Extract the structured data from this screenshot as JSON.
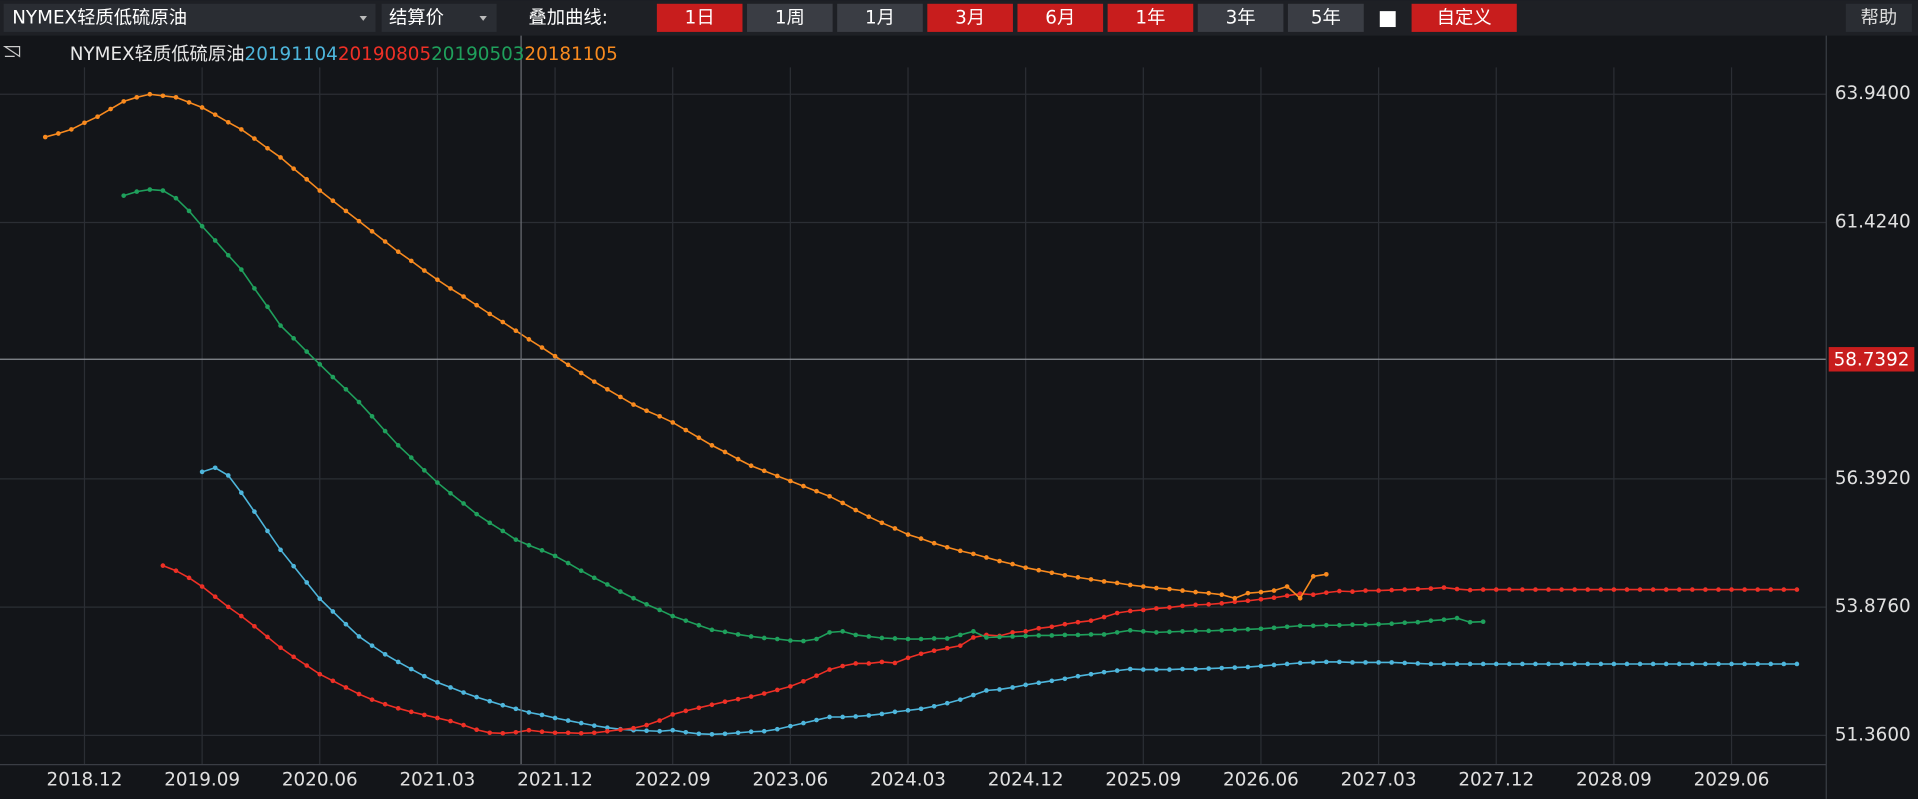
{
  "toolbar": {
    "instrument": "NYMEX轻质低硫原油",
    "price_type": "结算价",
    "overlay_label": "叠加曲线:",
    "ranges": [
      {
        "label": "1日",
        "active": true
      },
      {
        "label": "1周",
        "active": false
      },
      {
        "label": "1月",
        "active": false
      },
      {
        "label": "3月",
        "active": true
      },
      {
        "label": "6月",
        "active": true
      },
      {
        "label": "1年",
        "active": true
      },
      {
        "label": "3年",
        "active": false
      },
      {
        "label": "5年",
        "active": false
      }
    ],
    "custom": "自定义",
    "help": "帮助"
  },
  "chart_data": {
    "type": "line",
    "legend_title": "NYMEX轻质低硫原油",
    "categories": [
      null,
      null,
      null,
      "2018.12",
      null,
      null,
      null,
      null,
      null,
      null,
      null,
      null,
      "2019.09",
      null,
      null,
      null,
      null,
      null,
      null,
      null,
      null,
      "2020.06",
      null,
      null,
      null,
      null,
      null,
      null,
      null,
      null,
      "2021.03",
      null,
      null,
      null,
      null,
      null,
      null,
      null,
      null,
      "2021.12",
      null,
      null,
      null,
      null,
      null,
      null,
      null,
      null,
      "2022.09",
      null,
      null,
      null,
      null,
      null,
      null,
      null,
      null,
      "2023.06",
      null,
      null,
      null,
      null,
      null,
      null,
      null,
      null,
      "2024.03",
      null,
      null,
      null,
      null,
      null,
      null,
      null,
      null,
      "2024.12",
      null,
      null,
      null,
      null,
      null,
      null,
      null,
      null,
      "2025.09",
      null,
      null,
      null,
      null,
      null,
      null,
      null,
      null,
      "2026.06",
      null,
      null,
      null,
      null,
      null,
      null,
      null,
      null,
      "2027.03",
      null,
      null,
      null,
      null,
      null,
      null,
      null,
      null,
      "2027.12",
      null,
      null,
      null,
      null,
      null,
      null,
      null,
      null,
      "2028.09",
      null,
      null,
      null,
      null,
      null,
      null,
      null,
      null,
      "2029.06",
      null,
      null,
      null,
      null,
      null
    ],
    "series": [
      {
        "name": "20191104",
        "color": "#4eb6dc",
        "values": [
          null,
          null,
          null,
          null,
          null,
          null,
          null,
          null,
          null,
          null,
          null,
          null,
          56.53,
          56.61,
          56.46,
          56.12,
          55.75,
          55.37,
          55.0,
          54.68,
          54.36,
          54.04,
          53.79,
          53.54,
          53.3,
          53.12,
          52.95,
          52.8,
          52.66,
          52.52,
          52.4,
          52.3,
          52.2,
          52.11,
          52.03,
          51.95,
          51.88,
          51.81,
          51.76,
          51.7,
          51.65,
          51.6,
          51.55,
          51.51,
          51.48,
          51.46,
          51.45,
          51.44,
          51.46,
          51.42,
          51.39,
          51.38,
          51.39,
          51.41,
          51.43,
          51.44,
          51.48,
          51.54,
          51.6,
          51.66,
          51.72,
          51.72,
          51.73,
          51.75,
          51.78,
          51.82,
          51.85,
          51.88,
          51.93,
          51.99,
          52.06,
          52.15,
          52.24,
          52.26,
          52.3,
          52.35,
          52.39,
          52.43,
          52.47,
          52.52,
          52.56,
          52.6,
          52.63,
          52.66,
          52.65,
          52.65,
          52.65,
          52.66,
          52.66,
          52.67,
          52.68,
          52.69,
          52.7,
          52.72,
          52.74,
          52.76,
          52.78,
          52.79,
          52.8,
          52.8,
          52.79,
          52.79,
          52.79,
          52.79,
          52.78,
          52.77,
          52.76,
          52.76,
          52.76,
          52.76,
          52.76,
          52.76,
          52.76,
          52.76,
          52.76,
          52.76,
          52.76,
          52.76,
          52.76,
          52.76,
          52.76,
          52.76,
          52.76,
          52.76,
          52.76,
          52.76,
          52.76,
          52.76,
          52.76,
          52.76,
          52.76,
          52.76,
          52.76,
          52.76,
          52.76
        ]
      },
      {
        "name": "20190805",
        "color": "#ee3026",
        "values": [
          null,
          null,
          null,
          null,
          null,
          null,
          null,
          null,
          null,
          54.69,
          54.59,
          54.45,
          54.28,
          54.08,
          53.88,
          53.7,
          53.5,
          53.29,
          53.08,
          52.9,
          52.73,
          52.56,
          52.43,
          52.3,
          52.17,
          52.06,
          51.97,
          51.89,
          51.82,
          51.76,
          51.7,
          51.64,
          51.56,
          51.47,
          51.41,
          51.4,
          51.42,
          51.46,
          51.43,
          51.41,
          51.41,
          51.4,
          51.41,
          51.44,
          51.47,
          51.5,
          51.56,
          51.65,
          51.77,
          51.84,
          51.9,
          51.96,
          52.02,
          52.07,
          52.12,
          52.18,
          52.25,
          52.32,
          52.42,
          52.53,
          52.65,
          52.72,
          52.77,
          52.77,
          52.8,
          52.78,
          52.88,
          52.96,
          53.02,
          53.07,
          53.12,
          53.28,
          53.33,
          53.31,
          53.38,
          53.4,
          53.46,
          53.49,
          53.54,
          53.58,
          53.61,
          53.68,
          53.76,
          53.8,
          53.82,
          53.85,
          53.87,
          53.9,
          53.92,
          53.93,
          53.95,
          53.98,
          54.0,
          54.03,
          54.06,
          54.1,
          54.14,
          54.12,
          54.16,
          54.19,
          54.18,
          54.2,
          54.2,
          54.21,
          54.22,
          54.23,
          54.24,
          54.26,
          54.23,
          54.21,
          54.22,
          54.22,
          54.22,
          54.22,
          54.22,
          54.22,
          54.22,
          54.22,
          54.22,
          54.22,
          54.22,
          54.22,
          54.22,
          54.22,
          54.22,
          54.22,
          54.22,
          54.22,
          54.22,
          54.22,
          54.22,
          54.22,
          54.22,
          54.22,
          54.22
        ]
      },
      {
        "name": "20190503",
        "color": "#1fa05c",
        "values": [
          null,
          null,
          null,
          null,
          null,
          null,
          61.95,
          62.03,
          62.07,
          62.05,
          61.9,
          61.65,
          61.35,
          61.07,
          60.78,
          60.5,
          60.13,
          59.77,
          59.4,
          59.15,
          58.89,
          58.64,
          58.39,
          58.15,
          57.9,
          57.62,
          57.33,
          57.05,
          56.81,
          56.56,
          56.32,
          56.11,
          55.91,
          55.7,
          55.53,
          55.37,
          55.2,
          55.09,
          54.99,
          54.88,
          54.74,
          54.59,
          54.45,
          54.32,
          54.18,
          54.05,
          53.93,
          53.82,
          53.7,
          53.61,
          53.52,
          53.43,
          53.39,
          53.34,
          53.3,
          53.27,
          53.25,
          53.22,
          53.21,
          53.25,
          53.38,
          53.4,
          53.33,
          53.3,
          53.27,
          53.26,
          53.25,
          53.25,
          53.26,
          53.26,
          53.33,
          53.4,
          53.28,
          53.29,
          53.3,
          53.31,
          53.32,
          53.32,
          53.33,
          53.33,
          53.34,
          53.34,
          53.38,
          53.42,
          53.4,
          53.38,
          53.39,
          53.4,
          53.41,
          53.41,
          53.42,
          53.43,
          53.44,
          53.45,
          53.47,
          53.49,
          53.51,
          53.51,
          53.52,
          53.52,
          53.53,
          53.53,
          53.54,
          53.55,
          53.57,
          53.58,
          53.61,
          53.63,
          53.66,
          53.58,
          53.59,
          null,
          null,
          null,
          null,
          null,
          null,
          null,
          null,
          null,
          null,
          null,
          null,
          null,
          null,
          null,
          null,
          null,
          null,
          null,
          null,
          null,
          null,
          null,
          null
        ]
      },
      {
        "name": "20181105",
        "color": "#f88a1f",
        "values": [
          63.1,
          63.17,
          63.25,
          63.38,
          63.5,
          63.65,
          63.8,
          63.88,
          63.94,
          63.91,
          63.88,
          63.78,
          63.68,
          63.54,
          63.39,
          63.25,
          63.07,
          62.88,
          62.7,
          62.48,
          62.27,
          62.05,
          61.85,
          61.65,
          61.45,
          61.25,
          61.05,
          60.85,
          60.67,
          60.48,
          60.3,
          60.13,
          59.97,
          59.8,
          59.63,
          59.47,
          59.3,
          59.13,
          58.97,
          58.8,
          58.63,
          58.47,
          58.3,
          58.15,
          58.0,
          57.85,
          57.73,
          57.62,
          57.5,
          57.35,
          57.2,
          57.05,
          56.92,
          56.78,
          56.65,
          56.55,
          56.45,
          56.35,
          56.25,
          56.15,
          56.05,
          55.92,
          55.78,
          55.65,
          55.53,
          55.42,
          55.3,
          55.22,
          55.13,
          55.05,
          54.98,
          54.92,
          54.85,
          54.78,
          54.72,
          54.65,
          54.6,
          54.55,
          54.5,
          54.46,
          54.42,
          54.38,
          54.35,
          54.31,
          54.28,
          54.25,
          54.23,
          54.2,
          54.17,
          54.15,
          54.12,
          54.05,
          54.15,
          54.17,
          54.2,
          54.28,
          54.05,
          54.48,
          54.52,
          null,
          null,
          null,
          null,
          null,
          null,
          null,
          null,
          null,
          null,
          null,
          null,
          null,
          null,
          null,
          null,
          null,
          null,
          null,
          null,
          null,
          null,
          null,
          null,
          null,
          null,
          null,
          null,
          null,
          null,
          null,
          null,
          null,
          null,
          null,
          null
        ]
      }
    ],
    "ylim": [
      50.785,
      64.467
    ],
    "yticks": [
      {
        "value": 51.36,
        "label": "51.3600"
      },
      {
        "value": 53.876,
        "label": "53.8760"
      },
      {
        "value": 56.392,
        "label": "56.3920"
      },
      {
        "value": 61.424,
        "label": "61.4240"
      },
      {
        "value": 63.94,
        "label": "63.9400"
      }
    ],
    "last_price": 58.7392,
    "last_price_color": "#c81d1d",
    "grid": true
  }
}
